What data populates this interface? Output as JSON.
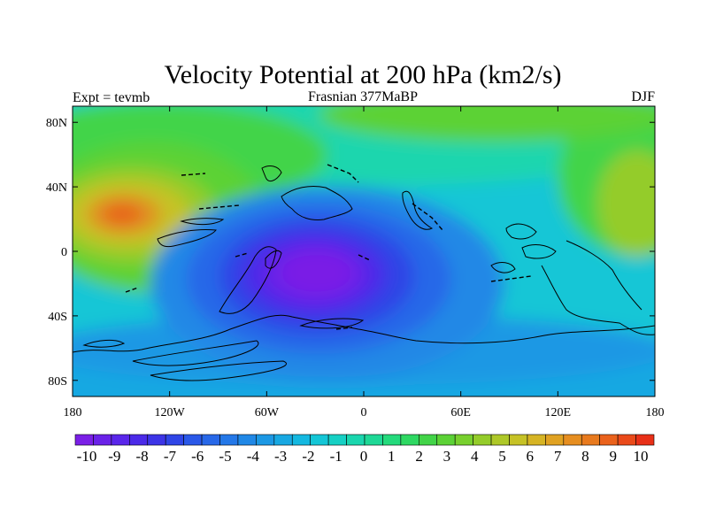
{
  "chart_data": {
    "type": "heatmap",
    "title": "Velocity Potential at 200 hPa (km2/s)",
    "left_string": "Expt = tevmb",
    "center_string": "Frasnian 377MaBP",
    "right_string": "DJF",
    "xlabel": "",
    "ylabel": "",
    "x_ticks": [
      "180",
      "120W",
      "60W",
      "0",
      "60E",
      "120E",
      "180"
    ],
    "x_tick_values": [
      -180,
      -120,
      -60,
      0,
      60,
      120,
      180
    ],
    "y_ticks": [
      "80N",
      "40N",
      "0",
      "40S",
      "80S"
    ],
    "y_tick_values": [
      80,
      40,
      0,
      -40,
      -80
    ],
    "xlim": [
      -180,
      180
    ],
    "ylim": [
      -90,
      90
    ],
    "colorbar_labels": [
      "-10",
      "-9",
      "-8",
      "-7",
      "-6",
      "-5",
      "-4",
      "-3",
      "-2",
      "-1",
      "0",
      "1",
      "2",
      "3",
      "4",
      "5",
      "6",
      "7",
      "8",
      "9",
      "10"
    ],
    "colorbar_levels": [
      -10,
      -9,
      -8,
      -7,
      -6,
      -5,
      -4,
      -3,
      -2,
      -1,
      0,
      1,
      2,
      3,
      4,
      5,
      6,
      7,
      8,
      9,
      10
    ],
    "colorbar_colors": [
      "#7a1fe6",
      "#6a22e8",
      "#5a26ea",
      "#4b2ae8",
      "#3c34e6",
      "#2f45e6",
      "#2a58e8",
      "#2868e8",
      "#2478e8",
      "#2088e6",
      "#1c98e4",
      "#18a8e2",
      "#14b8e0",
      "#14c6d6",
      "#16d0c4",
      "#1ad6ae",
      "#1ed896",
      "#24da7c",
      "#2ed862",
      "#42d448",
      "#5cd236",
      "#78d02e",
      "#94cc2a",
      "#aec828",
      "#c6c226",
      "#d6b424",
      "#e0a222",
      "#e68e20",
      "#e87a1e",
      "#ea621c",
      "#ea4a1a",
      "#e83018"
    ],
    "field_extrema": [
      {
        "lon": -30,
        "lat": -5,
        "value": -10,
        "kind": "min"
      },
      {
        "lon": -145,
        "lat": 25,
        "value": 8,
        "kind": "max"
      },
      {
        "lon": 180,
        "lat": 25,
        "value": 5,
        "kind": "max"
      },
      {
        "lon": 0,
        "lat": 70,
        "value": 2,
        "kind": "max"
      }
    ]
  }
}
